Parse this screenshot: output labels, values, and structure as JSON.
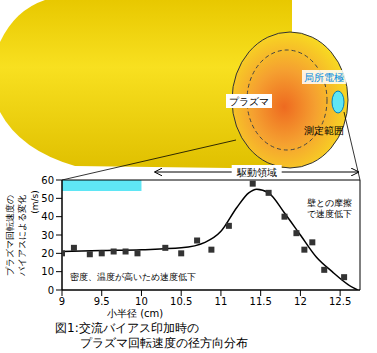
{
  "chart_data": {
    "type": "scatter",
    "title": [
      "図1:交流バイアス印加時の",
      "プラズマ回転速度の径方向分布"
    ],
    "xlabel": "小半径 (cm)",
    "ylabel": [
      "プラズマ回転速度の",
      "バイアスによる変化"
    ],
    "ylabel_unit": "(m/s)",
    "x": [
      9.0,
      9.15,
      9.35,
      9.5,
      9.65,
      9.8,
      9.95,
      10.3,
      10.5,
      10.7,
      10.88,
      11.1,
      11.4,
      11.6,
      11.8,
      11.95,
      12.05,
      12.15,
      12.3,
      12.55
    ],
    "values": [
      20,
      23,
      19.5,
      20,
      21,
      21,
      20,
      23,
      20,
      27,
      22,
      35,
      58,
      53,
      40,
      31,
      22,
      26,
      11,
      7
    ],
    "color": "#333333",
    "marker": "square",
    "curve": {
      "x": [
        9.0,
        9.5,
        10.0,
        10.5,
        10.8,
        11.0,
        11.2,
        11.35,
        11.45,
        11.6,
        11.8,
        12.0,
        12.2,
        12.4,
        12.6,
        12.72
      ],
      "values": [
        21,
        21.5,
        22,
        23,
        26,
        32,
        45,
        53,
        55,
        53,
        42,
        30,
        18,
        10,
        3,
        0
      ],
      "color": "#000000",
      "line_style": "solid"
    },
    "xlim": [
      9,
      12.75
    ],
    "xticks": [
      9,
      9.5,
      10,
      10.5,
      11,
      11.5,
      12,
      12.5
    ],
    "ylim": [
      0,
      60
    ],
    "yticks": [
      0,
      10,
      20,
      30,
      40,
      50,
      60
    ],
    "grid": false,
    "annotations": [
      {
        "text": [
          "密度、温度が高いため速度低下"
        ]
      },
      {
        "text": [
          "壁との摩擦",
          "で速度低下"
        ]
      }
    ],
    "electrode_region": {
      "x": [
        9,
        10
      ],
      "y": [
        54,
        60
      ],
      "color": "#5fe6f5"
    },
    "driving_region": {
      "label": "駆動領域",
      "x": [
        10.15,
        12.75
      ]
    }
  },
  "diagram": {
    "electrode": "局所電極",
    "plasma": "プラズマ",
    "measurement": "測定範囲",
    "color": "#f8e020"
  }
}
